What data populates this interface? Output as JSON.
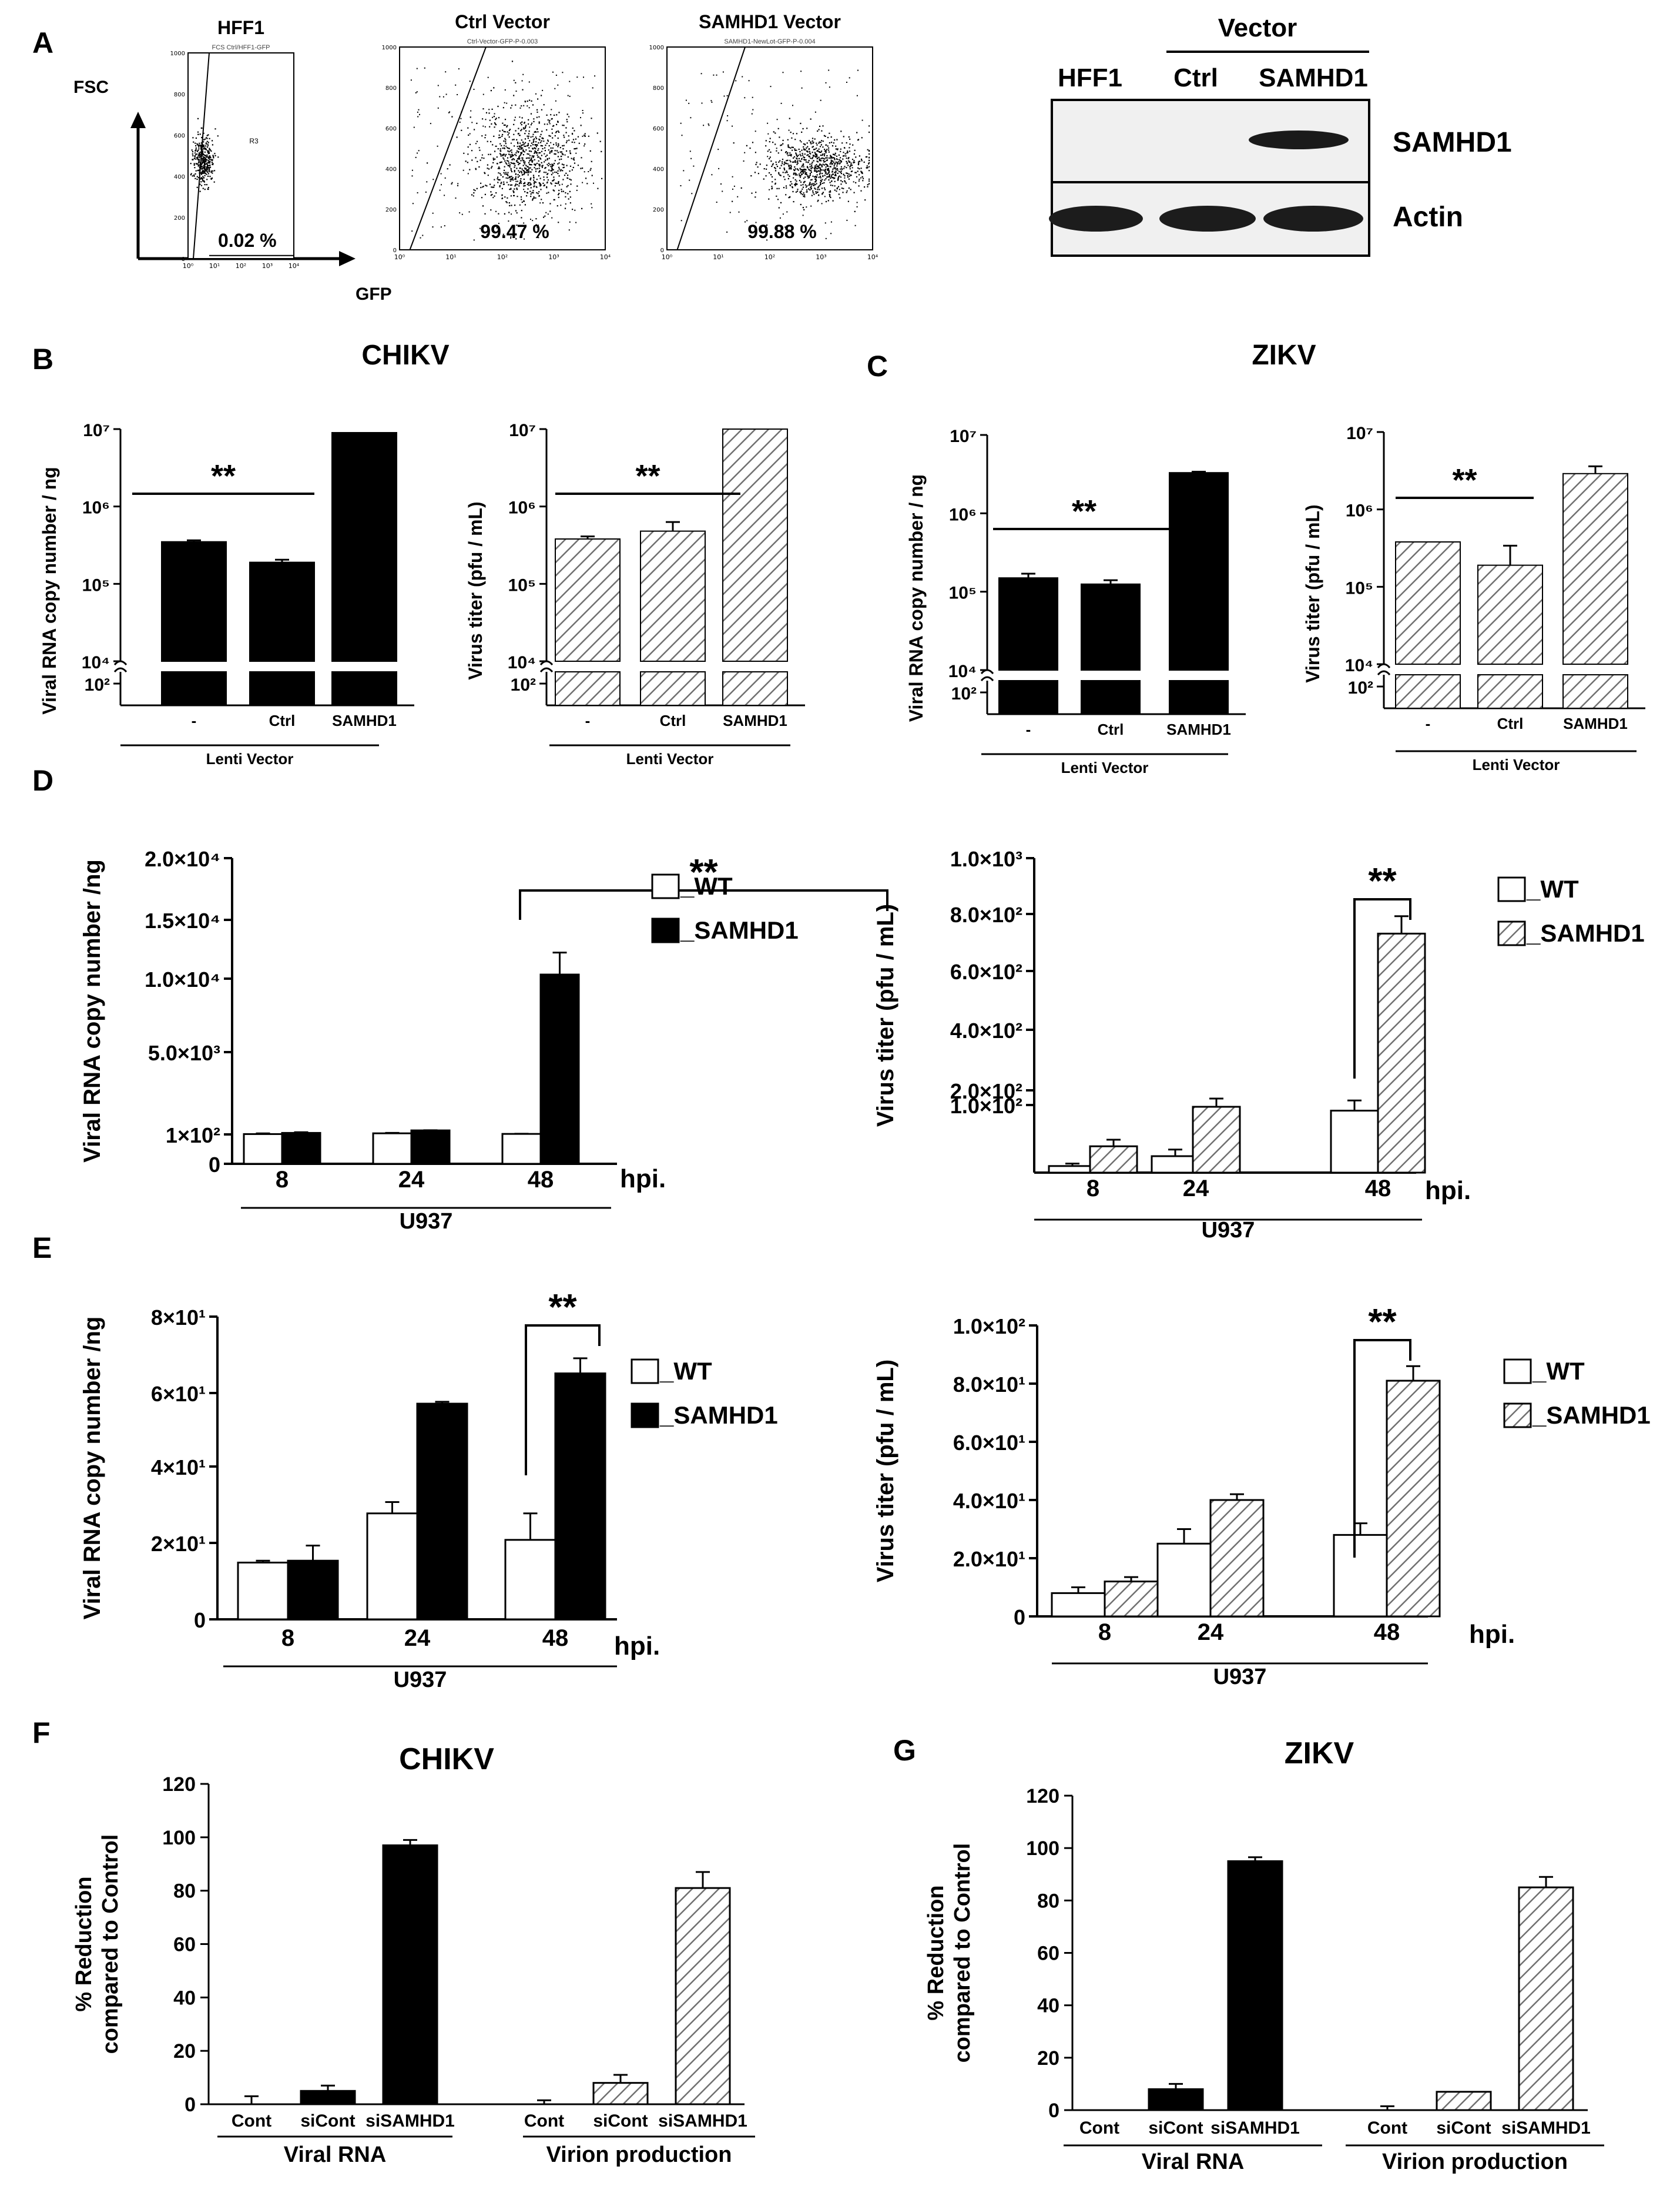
{
  "panels": {
    "A": "A",
    "B": "B",
    "C": "C",
    "D": "D",
    "E": "E",
    "F": "F",
    "G": "G"
  },
  "flow": {
    "fsc_axis": "FSC",
    "gfp_axis": "GFP",
    "plots": [
      {
        "title": "HFF1",
        "sub": "FCS Ctrl/HFF1-GFP",
        "pct": "0.02 %",
        "gate_label": "R3"
      },
      {
        "title": "Ctrl Vector",
        "sub": "Ctrl-Vector-GFP-P-0.003",
        "pct": "99.47 %"
      },
      {
        "title": "SAMHD1 Vector",
        "sub": "SAMHD1-NewLot-GFP-P-0.004",
        "pct": "99.88 %"
      }
    ],
    "yticks": [
      "1000",
      "800",
      "600",
      "400",
      "200",
      "0"
    ],
    "xticks": [
      "10⁰",
      "10¹",
      "10²",
      "10³",
      "10⁴"
    ]
  },
  "blot": {
    "vector_header": "Vector",
    "lanes": [
      "HFF1",
      "Ctrl",
      "SAMHD1"
    ],
    "rows": [
      "SAMHD1",
      "Actin"
    ]
  },
  "colors": {
    "black": "#000000",
    "white": "#ffffff",
    "hatch": "#707070"
  },
  "chart_data": [
    {
      "id": "B1",
      "type": "bar",
      "panel": "B",
      "section_title": "CHIKV",
      "title": "",
      "ylabel": "Viral RNA copy number / ng",
      "yscale": "log",
      "y_ticks": [
        "10⁷",
        "10⁶",
        "10⁵",
        "10⁴",
        "10²"
      ],
      "categories": [
        "-",
        "Ctrl",
        "SAMHD1"
      ],
      "group_label": "Lenti Vector",
      "values": [
        350000,
        190000,
        9000000
      ],
      "errors": [
        15000,
        15000,
        0
      ],
      "fill": "black",
      "significance": "**"
    },
    {
      "id": "B2",
      "type": "bar",
      "panel": "B",
      "title": "",
      "ylabel": "Virus titer (pfu / mL)",
      "yscale": "log",
      "y_ticks": [
        "10⁷",
        "10⁶",
        "10⁵",
        "10⁴",
        "10²"
      ],
      "categories": [
        "-",
        "Ctrl",
        "SAMHD1"
      ],
      "group_label": "Lenti Vector",
      "values": [
        380000,
        480000,
        10000000
      ],
      "errors": [
        30000,
        150000,
        0
      ],
      "fill": "hatch",
      "significance": "**"
    },
    {
      "id": "C1",
      "type": "bar",
      "panel": "C",
      "section_title": "ZIKV",
      "title": "",
      "ylabel": "Viral RNA copy number / ng",
      "yscale": "log",
      "y_ticks": [
        "10⁷",
        "10⁶",
        "10⁵",
        "10⁴",
        "10²"
      ],
      "categories": [
        "-",
        "Ctrl",
        "SAMHD1"
      ],
      "group_label": "Lenti Vector",
      "values": [
        150000,
        125000,
        3300000
      ],
      "errors": [
        20000,
        15000,
        100000
      ],
      "fill": "black",
      "significance": "**"
    },
    {
      "id": "C2",
      "type": "bar",
      "panel": "C",
      "title": "",
      "ylabel": "Virus titer (pfu / mL)",
      "yscale": "log",
      "y_ticks": [
        "10⁷",
        "10⁶",
        "10⁵",
        "10⁴",
        "10²"
      ],
      "categories": [
        "-",
        "Ctrl",
        "SAMHD1"
      ],
      "group_label": "Lenti Vector",
      "values": [
        380000,
        190000,
        2900000
      ],
      "errors": [
        0,
        150000,
        700000
      ],
      "fill": "hatch",
      "significance": "**"
    },
    {
      "id": "D1",
      "type": "bar",
      "panel": "D",
      "title": "",
      "ylabel": "Viral RNA copy number /ng",
      "categories": [
        "8",
        "24",
        "48"
      ],
      "x_unit": "hpi.",
      "group_label": "U937",
      "y_ticks": [
        "2.0×10⁴",
        "1.5×10⁴",
        "1.0×10⁴",
        "5.0×10³",
        "1×10²",
        "0"
      ],
      "series": [
        {
          "name": "_WT",
          "fill": "white",
          "values": [
            120,
            165,
            130
          ],
          "errors": [
            40,
            25,
            10
          ]
        },
        {
          "name": "_SAMHD1",
          "fill": "black",
          "values": [
            190,
            340,
            11000
          ],
          "errors": [
            40,
            10,
            1700
          ]
        }
      ],
      "significance": "**"
    },
    {
      "id": "D2",
      "type": "bar",
      "panel": "D",
      "title": "",
      "ylabel": "Virus titer (pfu / mL)",
      "categories": [
        "8",
        "24",
        "48"
      ],
      "x_unit": "hpi.",
      "group_label": "U937",
      "y_ticks": [
        "1.0×10³",
        "8.0×10²",
        "6.0×10²",
        "4.0×10²",
        "2.0×10²",
        "1.0×10²"
      ],
      "series": [
        {
          "name": "_WT",
          "fill": "white",
          "values": [
            8,
            20,
            130
          ],
          "errors": [
            3,
            8,
            35
          ]
        },
        {
          "name": "_SAMHD1",
          "fill": "hatch",
          "values": [
            32,
            80,
            740
          ],
          "errors": [
            8,
            10,
            60
          ]
        }
      ],
      "significance": "**"
    },
    {
      "id": "E1",
      "type": "bar",
      "panel": "E",
      "title": "",
      "ylabel": "Viral RNA copy number /ng",
      "categories": [
        "8",
        "24",
        "48"
      ],
      "x_unit": "hpi.",
      "group_label": "U937",
      "ylim": [
        0,
        80
      ],
      "y_ticks": [
        "8×10¹",
        "6×10¹",
        "4×10¹",
        "2×10¹",
        "0"
      ],
      "series": [
        {
          "name": "_WT",
          "fill": "white",
          "values": [
            15,
            28,
            21
          ],
          "errors": [
            0.5,
            3,
            7
          ]
        },
        {
          "name": "_SAMHD1",
          "fill": "black",
          "values": [
            15.5,
            57,
            65
          ],
          "errors": [
            4,
            0.5,
            4
          ]
        }
      ],
      "significance": "**"
    },
    {
      "id": "E2",
      "type": "bar",
      "panel": "E",
      "title": "",
      "ylabel": "Virus titer (pfu / mL)",
      "categories": [
        "8",
        "24",
        "48"
      ],
      "x_unit": "hpi.",
      "group_label": "U937",
      "ylim": [
        0,
        100
      ],
      "y_ticks": [
        "1.0×10²",
        "8.0×10¹",
        "6.0×10¹",
        "4.0×10¹",
        "2.0×10¹",
        "0"
      ],
      "series": [
        {
          "name": "_WT",
          "fill": "white",
          "values": [
            8,
            25,
            28
          ],
          "errors": [
            2,
            5,
            4
          ]
        },
        {
          "name": "_SAMHD1",
          "fill": "hatch",
          "values": [
            12,
            40,
            81
          ],
          "errors": [
            1.5,
            2,
            5
          ]
        }
      ],
      "significance": "**"
    },
    {
      "id": "F",
      "type": "bar",
      "panel": "F",
      "title": "CHIKV",
      "ylabel_lines": [
        "% Reduction",
        "compared to Control"
      ],
      "ylim": [
        0,
        120
      ],
      "y_ticks": [
        "120",
        "100",
        "80",
        "60",
        "40",
        "20",
        "0"
      ],
      "categories": [
        "Cont",
        "siCont",
        "siSAMHD1",
        "Cont",
        "siCont",
        "siSAMHD1"
      ],
      "fills": [
        "white",
        "black",
        "black",
        "white",
        "hatch",
        "hatch"
      ],
      "values": [
        0,
        5,
        97,
        0,
        8,
        81
      ],
      "errors": [
        3,
        2,
        2,
        1.5,
        3,
        6
      ],
      "groups": [
        "Viral RNA",
        "Virion production"
      ]
    },
    {
      "id": "G",
      "type": "bar",
      "panel": "G",
      "title": "ZIKV",
      "ylabel_lines": [
        "% Reduction",
        "compared to Control"
      ],
      "ylim": [
        0,
        120
      ],
      "y_ticks": [
        "120",
        "100",
        "80",
        "60",
        "40",
        "20",
        "0"
      ],
      "categories": [
        "Cont",
        "siCont",
        "siSAMHD1",
        "Cont",
        "siCont",
        "siSAMHD1"
      ],
      "fills": [
        "white",
        "black",
        "black",
        "white",
        "hatch",
        "hatch"
      ],
      "values": [
        0,
        8,
        95,
        0,
        7,
        85
      ],
      "errors": [
        0,
        2,
        1.5,
        1.5,
        0,
        4
      ],
      "groups": [
        "Viral RNA",
        "Virion production"
      ]
    }
  ]
}
